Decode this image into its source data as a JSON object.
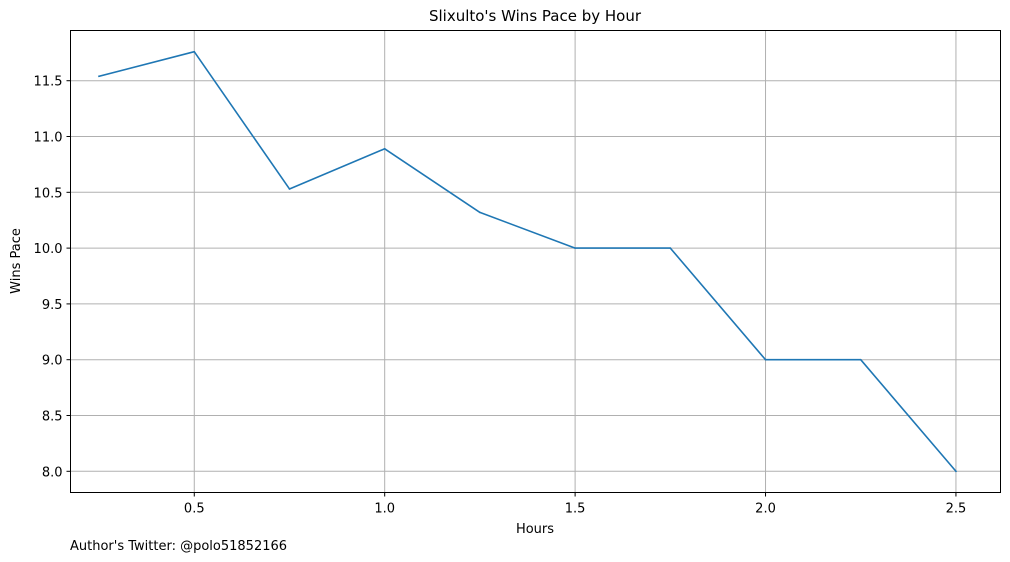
{
  "chart_data": {
    "type": "line",
    "title": "Slixulto's Wins Pace by Hour",
    "xlabel": "Hours",
    "ylabel": "Wins Pace",
    "xlim": [
      0.175,
      2.617
    ],
    "ylim": [
      7.81,
      11.95
    ],
    "xticks": [
      0.5,
      1.0,
      1.5,
      2.0,
      2.5
    ],
    "xtick_labels": [
      "0.5",
      "1.0",
      "1.5",
      "2.0",
      "2.5"
    ],
    "yticks": [
      8.0,
      8.5,
      9.0,
      9.5,
      10.0,
      10.5,
      11.0,
      11.5
    ],
    "ytick_labels": [
      "8.0",
      "8.5",
      "9.0",
      "9.5",
      "10.0",
      "10.5",
      "11.0",
      "11.5"
    ],
    "grid": true,
    "series": [
      {
        "color": "#1f77b4",
        "x": [
          0.25,
          0.5,
          0.75,
          1.0,
          1.25,
          1.5,
          1.75,
          2.0,
          2.25,
          2.5
        ],
        "values": [
          11.54,
          11.76,
          10.53,
          10.89,
          10.32,
          10.0,
          10.0,
          9.0,
          9.0,
          8.0
        ]
      }
    ]
  },
  "footer": {
    "text": "Author's Twitter: @polo51852166"
  }
}
